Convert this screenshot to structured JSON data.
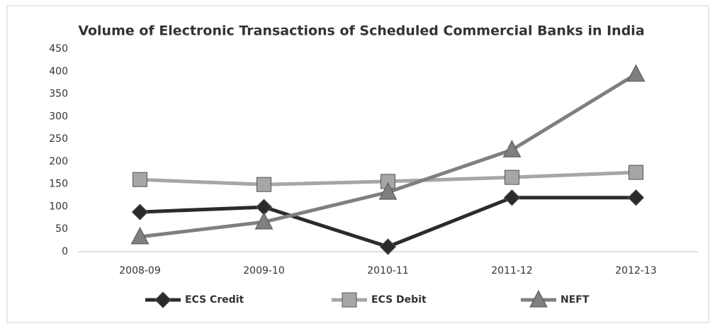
{
  "chart_data": {
    "type": "line",
    "title": "Volume of Electronic Transactions of Scheduled Commercial Banks in India",
    "categories": [
      "2008-09",
      "2009-10",
      "2010-11",
      "2011-12",
      "2012-13"
    ],
    "series": [
      {
        "name": "ECS Credit",
        "color": "#2b2b2b",
        "marker": "diamond",
        "values": [
          88,
          99,
          11,
          120,
          120
        ]
      },
      {
        "name": "ECS Debit",
        "color": "#a6a6a6",
        "marker": "square",
        "values": [
          160,
          149,
          156,
          165,
          176
        ]
      },
      {
        "name": "NEFT",
        "color": "#7f7f7f",
        "marker": "triangle",
        "values": [
          33,
          66,
          132,
          226,
          394
        ]
      }
    ],
    "ylim": [
      0,
      450
    ],
    "yticks": [
      0,
      50,
      100,
      150,
      200,
      250,
      300,
      350,
      400,
      450
    ],
    "legend": "bottom"
  }
}
